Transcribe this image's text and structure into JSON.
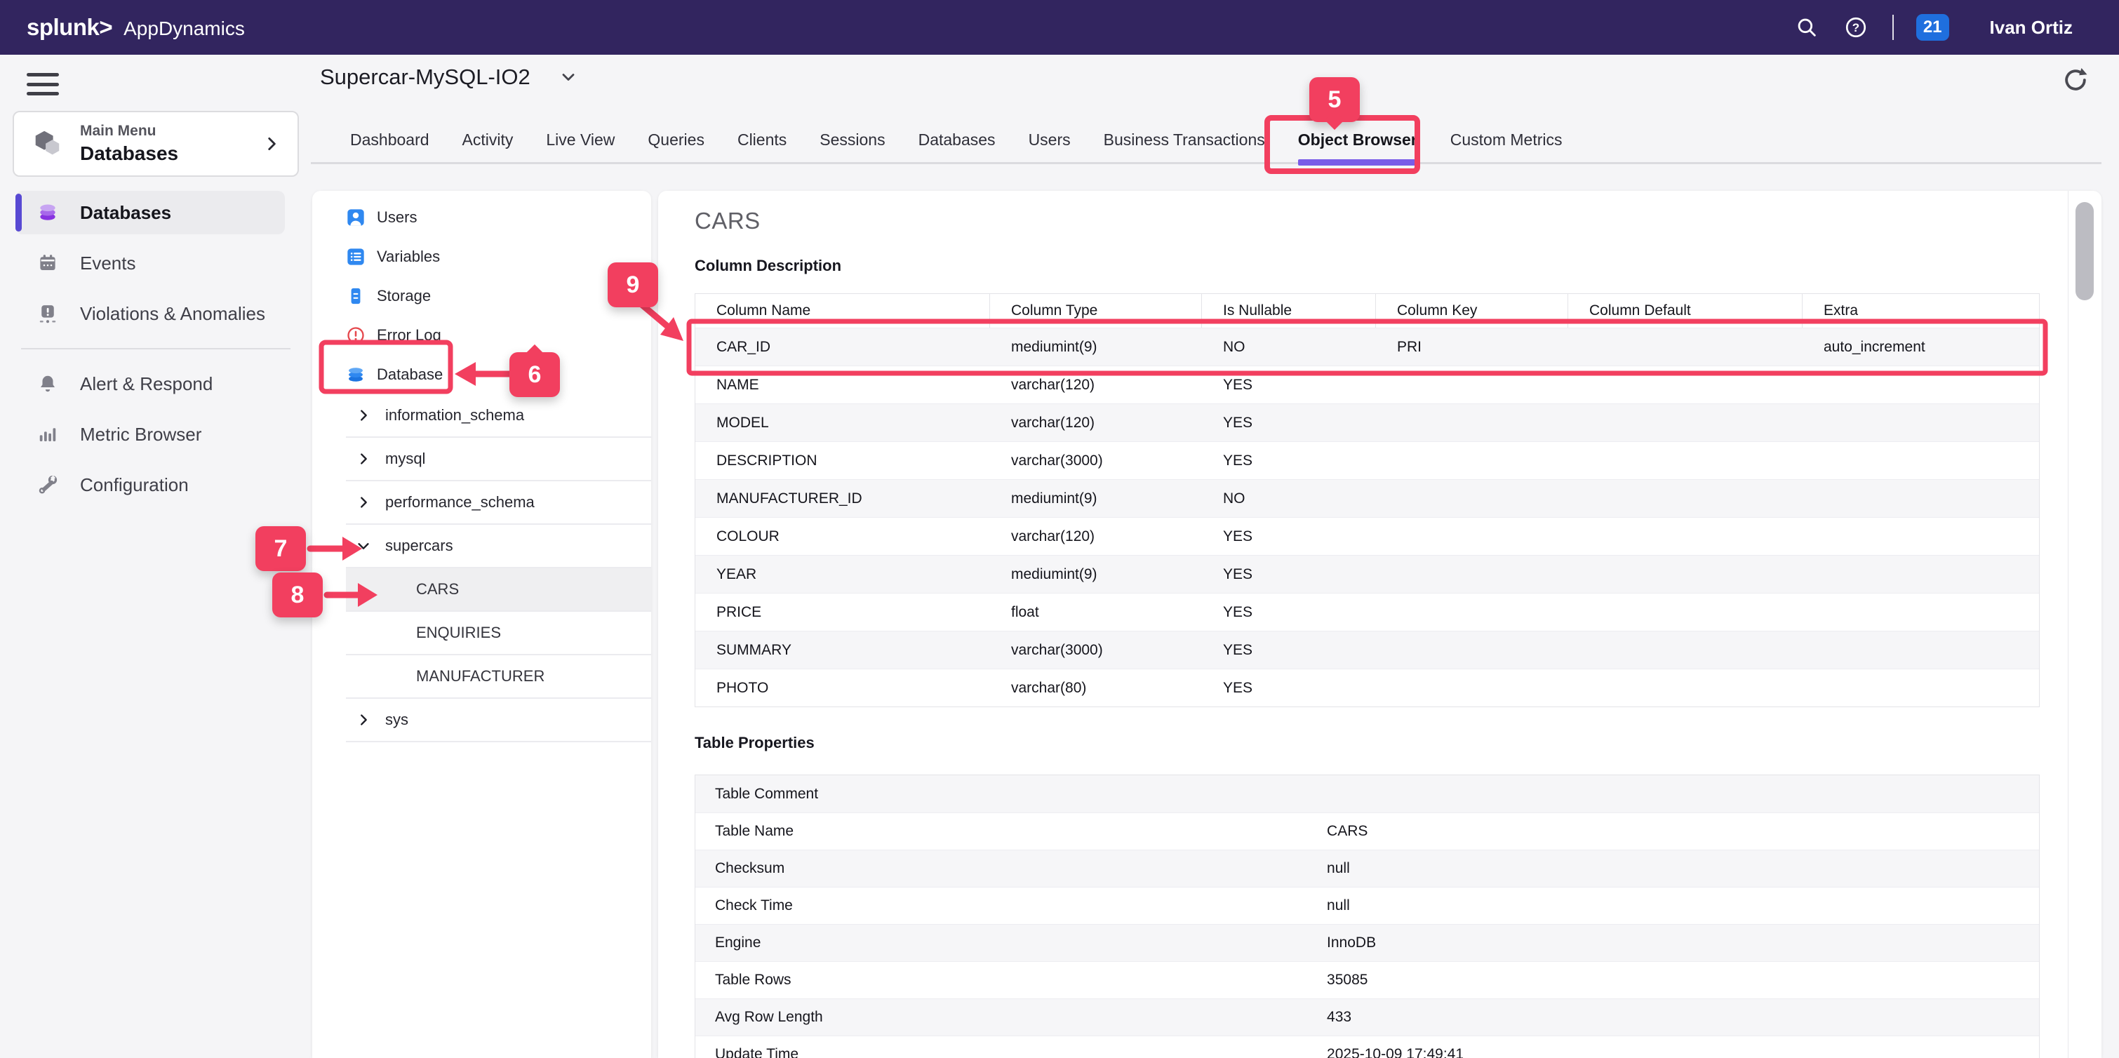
{
  "topbar": {
    "logo_primary": "splunk>",
    "logo_secondary": "AppDynamics",
    "notification_count": "21",
    "user_name": "Ivan Ortiz"
  },
  "toolbar": {
    "title": "Supercar-MySQL-IO2"
  },
  "tabs": [
    {
      "label": "Dashboard",
      "active": false
    },
    {
      "label": "Activity",
      "active": false
    },
    {
      "label": "Live View",
      "active": false
    },
    {
      "label": "Queries",
      "active": false
    },
    {
      "label": "Clients",
      "active": false
    },
    {
      "label": "Sessions",
      "active": false
    },
    {
      "label": "Databases",
      "active": false
    },
    {
      "label": "Users",
      "active": false
    },
    {
      "label": "Business Transactions",
      "active": false
    },
    {
      "label": "Object Browser",
      "active": true
    },
    {
      "label": "Custom Metrics",
      "active": false
    }
  ],
  "sidebar": {
    "main_menu": {
      "eyebrow": "Main Menu",
      "label": "Databases"
    },
    "items": [
      {
        "label": "Databases",
        "selected": true
      },
      {
        "label": "Events",
        "selected": false
      },
      {
        "label": "Violations & Anomalies",
        "selected": false
      },
      {
        "label": "Alert & Respond",
        "selected": false
      },
      {
        "label": "Metric Browser",
        "selected": false
      },
      {
        "label": "Configuration",
        "selected": false
      }
    ]
  },
  "tree": {
    "objects": [
      {
        "label": "Users"
      },
      {
        "label": "Variables"
      },
      {
        "label": "Storage"
      },
      {
        "label": "Error Log"
      },
      {
        "label": "Database"
      }
    ],
    "schemas": [
      {
        "name": "information_schema",
        "expanded": false
      },
      {
        "name": "mysql",
        "expanded": false
      },
      {
        "name": "performance_schema",
        "expanded": false
      },
      {
        "name": "supercars",
        "expanded": true,
        "tables": [
          {
            "name": "CARS",
            "selected": true
          },
          {
            "name": "ENQUIRIES",
            "selected": false
          },
          {
            "name": "MANUFACTURER",
            "selected": false
          }
        ]
      },
      {
        "name": "sys",
        "expanded": false
      }
    ]
  },
  "content": {
    "title": "CARS",
    "column_description": {
      "heading": "Column Description",
      "headers": [
        "Column Name",
        "Column Type",
        "Is Nullable",
        "Column Key",
        "Column Default",
        "Extra"
      ],
      "rows": [
        {
          "cells": [
            "CAR_ID",
            "mediumint(9)",
            "NO",
            "PRI",
            "",
            "auto_increment"
          ],
          "highlighted": true
        },
        {
          "cells": [
            "NAME",
            "varchar(120)",
            "YES",
            "",
            "",
            ""
          ],
          "highlighted": false
        },
        {
          "cells": [
            "MODEL",
            "varchar(120)",
            "YES",
            "",
            "",
            ""
          ],
          "highlighted": false
        },
        {
          "cells": [
            "DESCRIPTION",
            "varchar(3000)",
            "YES",
            "",
            "",
            ""
          ],
          "highlighted": false
        },
        {
          "cells": [
            "MANUFACTURER_ID",
            "mediumint(9)",
            "NO",
            "",
            "",
            ""
          ],
          "highlighted": false
        },
        {
          "cells": [
            "COLOUR",
            "varchar(120)",
            "YES",
            "",
            "",
            ""
          ],
          "highlighted": false
        },
        {
          "cells": [
            "YEAR",
            "mediumint(9)",
            "YES",
            "",
            "",
            ""
          ],
          "highlighted": false
        },
        {
          "cells": [
            "PRICE",
            "float",
            "YES",
            "",
            "",
            ""
          ],
          "highlighted": false
        },
        {
          "cells": [
            "SUMMARY",
            "varchar(3000)",
            "YES",
            "",
            "",
            ""
          ],
          "highlighted": false
        },
        {
          "cells": [
            "PHOTO",
            "varchar(80)",
            "YES",
            "",
            "",
            ""
          ],
          "highlighted": false
        }
      ]
    },
    "table_properties": {
      "heading": "Table Properties",
      "rows": [
        {
          "label": "Table Comment",
          "value": ""
        },
        {
          "label": "Table Name",
          "value": "CARS"
        },
        {
          "label": "Checksum",
          "value": "null"
        },
        {
          "label": "Check Time",
          "value": "null"
        },
        {
          "label": "Engine",
          "value": "InnoDB"
        },
        {
          "label": "Table Rows",
          "value": "35085"
        },
        {
          "label": "Avg Row Length",
          "value": "433"
        },
        {
          "label": "Update Time",
          "value": "2025-10-09 17:49:41"
        }
      ]
    }
  },
  "annotations": {
    "step5": "5",
    "step6": "6",
    "step7": "7",
    "step8": "8",
    "step9": "9"
  },
  "colors": {
    "topbar_bg": "#32255F",
    "annotation_pink": "#F23F5F",
    "active_tab_underline": "#7A5CE8",
    "notification_badge_blue": "#1F6FDE",
    "tree_icon_blue": "#2F88F0",
    "error_red": "#E5484D",
    "selected_nav_purple": "#5849D3"
  }
}
